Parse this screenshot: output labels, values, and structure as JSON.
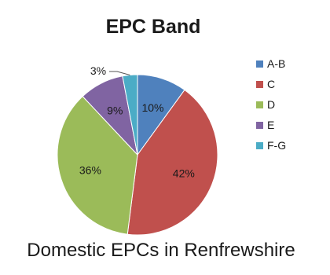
{
  "chart_data": {
    "type": "pie",
    "title": "EPC Band",
    "caption": "Domestic EPCs in Renfrewshire",
    "legend_position": "right",
    "categories": [
      "A-B",
      "C",
      "D",
      "E",
      "F-G"
    ],
    "values": [
      10,
      42,
      36,
      9,
      3
    ],
    "labels": [
      "10%",
      "42%",
      "36%",
      "9%",
      "3%"
    ],
    "colors": [
      "#4f81bd",
      "#c0504d",
      "#9bbb59",
      "#8064a2",
      "#4bacc6"
    ]
  }
}
